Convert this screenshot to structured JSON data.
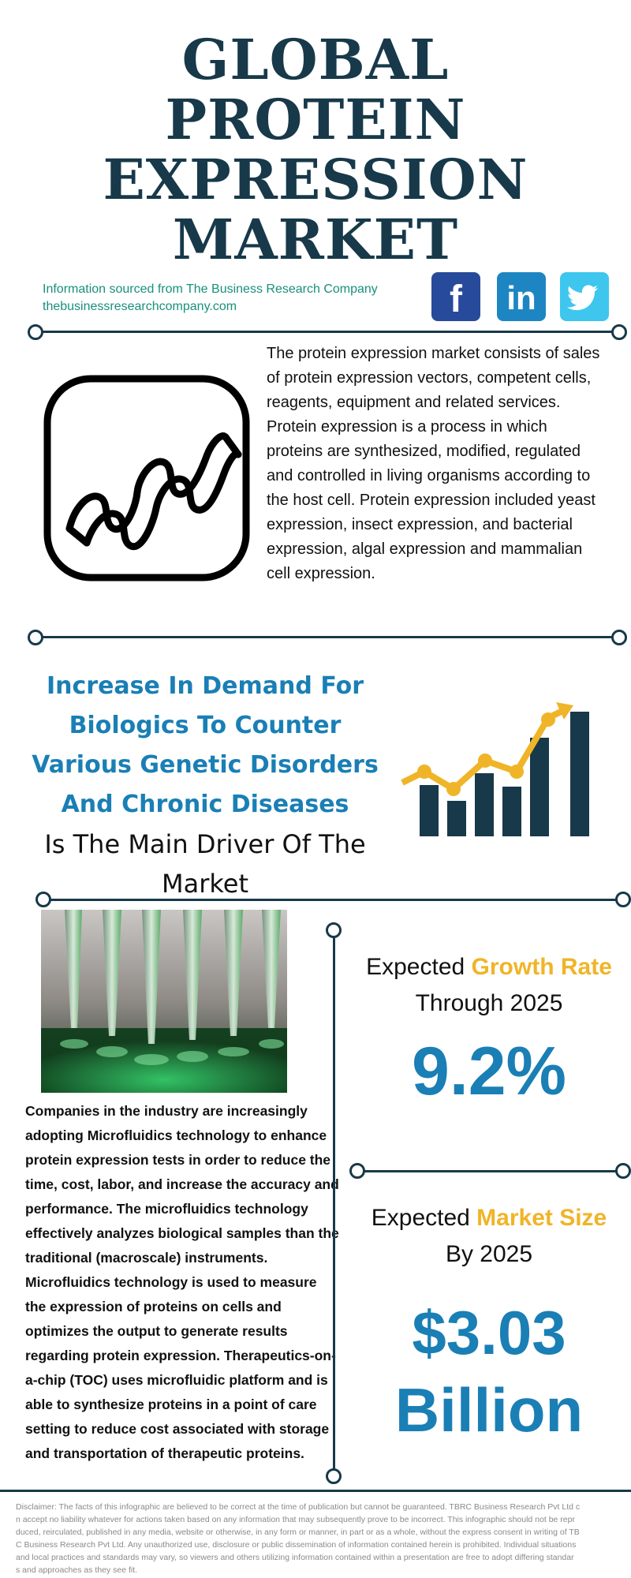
{
  "title": {
    "line1": "GLOBAL",
    "line2": "PROTEIN",
    "line3": "EXPRESSION",
    "line4": "MARKET"
  },
  "source": {
    "line1": "Information sourced from The Business Research Company",
    "line2": "thebusinessresearchcompany.com"
  },
  "social": {
    "facebook": {
      "icon": "facebook-icon",
      "glyph": "f",
      "color": "#284a9a"
    },
    "linkedin": {
      "icon": "linkedin-icon",
      "glyph": "in",
      "color": "#1d86c2"
    },
    "twitter": {
      "icon": "twitter-icon",
      "color": "#3ec6ee"
    }
  },
  "intro": {
    "icon": "dna-helix-icon",
    "text": "The protein expression market consists of sales of protein expression vectors, competent cells, reagents, equipment and related services. Protein expression is a process in which proteins are synthesized, modified, regulated and controlled in living organisms according to the host cell. Protein expression included yeast expression, insect expression, and bacterial expression, algal expression and mammalian cell expression."
  },
  "driver": {
    "highlight": "Increase In Demand For Biologics To Counter Various Genetic Disorders And Chronic Diseases",
    "rest": "Is The Main Driver Of The Market",
    "icon": "growth-chart-icon"
  },
  "photo": {
    "icon": "pipette-tips-photo"
  },
  "body": "Companies in the industry are increasingly adopting Microfluidics technology to enhance protein expression tests in order to reduce the time, cost, labor, and increase the accuracy and performance. The microfluidics technology effectively analyzes biological samples than the traditional (macroscale) instruments. Microfluidics technology is used to measure the expression of proteins on cells and optimizes the output to generate results regarding protein expression. Therapeutics-on-a-chip (TOC) uses microfluidic platform and is able to synthesize proteins in a point of care setting to reduce cost associated with storage and transportation of therapeutic proteins.",
  "growth": {
    "prefix": "Expected ",
    "highlight": "Growth Rate",
    "suffix": "Through 2025",
    "value": "9.2%"
  },
  "market": {
    "prefix": "Expected ",
    "highlight": "Market Size",
    "suffix": "By 2025",
    "value_line1": "$3.03",
    "value_line2": "Billion"
  },
  "colors": {
    "navy": "#17394a",
    "blue": "#1a7fb5",
    "yellow": "#f0b428",
    "teal": "#18907a"
  },
  "disclaimer": [
    "Disclaimer: The facts of this infographic are believed to be correct at the time of publication but cannot be guaranteed. TBRC Business Research Pvt Ltd c",
    "n accept no liability whatever for actions taken based on any information that may subsequently prove to be incorrect. This infographic should not be repr",
    "duced, reirculated, published in any media, website or otherwise, in any form or manner, in part or as a whole, without the express consent in writing of TB",
    "C Business Research Pvt Ltd. Any unauthorized use, disclosure or public dissemination of information contained herein is prohibited. Individual situations",
    "and local practices and standards may vary, so viewers and others utilizing information contained within a presentation are free to adopt differing standar",
    "s and approaches as they see fit."
  ]
}
